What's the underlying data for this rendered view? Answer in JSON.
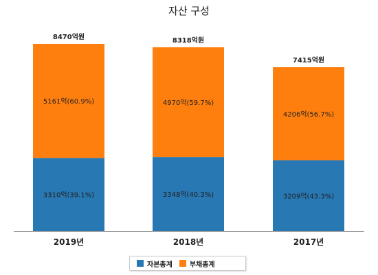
{
  "chart_data": {
    "type": "bar",
    "stacked": true,
    "title": "자산 구성",
    "categories": [
      "2019년",
      "2018년",
      "2017년"
    ],
    "totals": [
      8470,
      8318,
      7415
    ],
    "total_labels": [
      "8470억원",
      "8318억원",
      "7415억원"
    ],
    "series": [
      {
        "name": "자본총계",
        "color": "#2878b4",
        "values": [
          3310,
          3348,
          3209
        ],
        "labels": [
          "3310억(39.1%)",
          "3348억(40.3%)",
          "3209억(43.3%)"
        ]
      },
      {
        "name": "부채총계",
        "color": "#ff7f0e",
        "values": [
          5161,
          4970,
          4206
        ],
        "labels": [
          "5161억(60.9%)",
          "4970억(59.7%)",
          "4206억(56.7%)"
        ]
      }
    ],
    "ylim": [
      0,
      8470
    ],
    "grid": false,
    "legend": "bottom-center"
  }
}
